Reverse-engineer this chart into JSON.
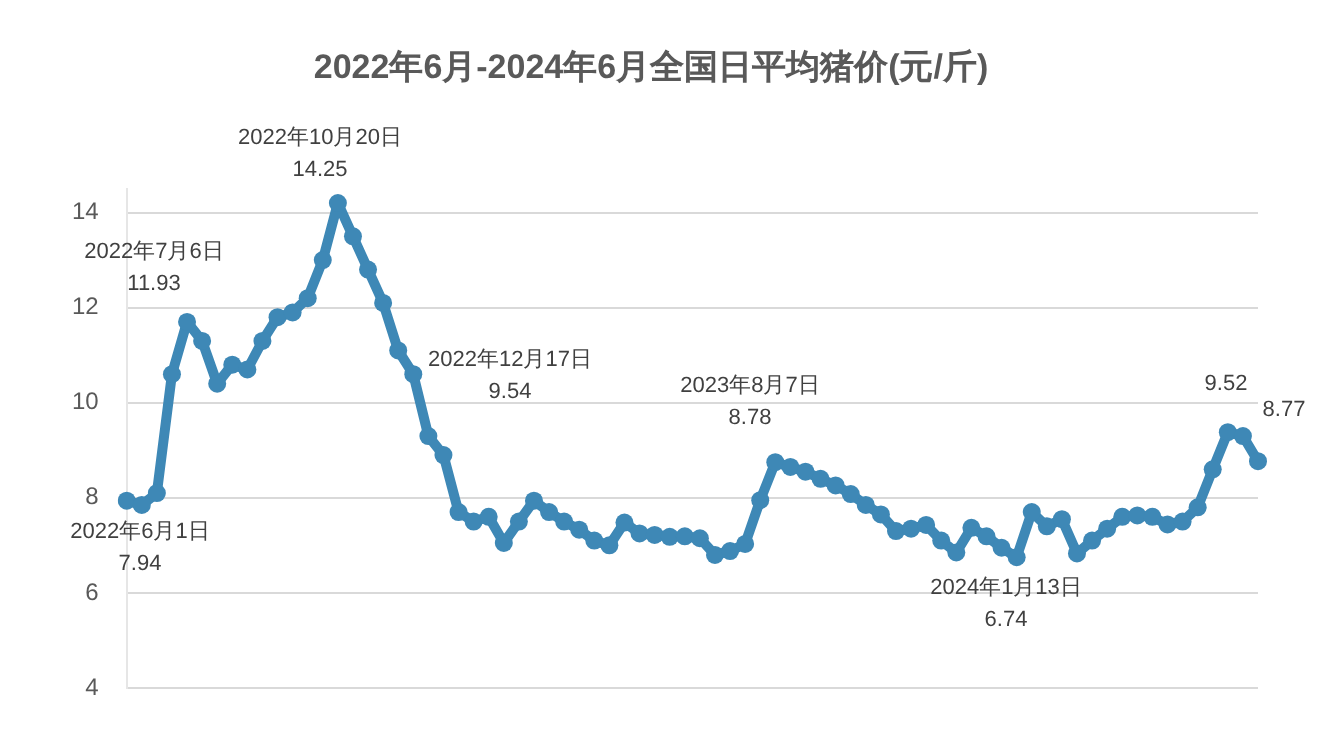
{
  "chart_data": {
    "type": "line",
    "title": "2022年6月-2024年6月全国日平均猪价(元/斤)",
    "categories": [
      null,
      null,
      null,
      null,
      null,
      null,
      null,
      null,
      null,
      null,
      null,
      null,
      null,
      null,
      null,
      null,
      null,
      null,
      null,
      null,
      null,
      null,
      null,
      null,
      null,
      null,
      null,
      null,
      null,
      null,
      null,
      null,
      null,
      null,
      null,
      null,
      null,
      null,
      null,
      null,
      null,
      null,
      null,
      null,
      null,
      null,
      null,
      null,
      null,
      null,
      null,
      null,
      null,
      null,
      null,
      null,
      null,
      null,
      null,
      null,
      null,
      null,
      null,
      null,
      null,
      null,
      null,
      null,
      null,
      null,
      null,
      null,
      null,
      null,
      null,
      null
    ],
    "series": [
      {
        "color": "#3e88b6",
        "values": [
          7.94,
          7.85,
          8.1,
          10.6,
          11.7,
          11.3,
          10.4,
          10.8,
          10.7,
          11.3,
          11.8,
          11.9,
          12.2,
          13.0,
          14.2,
          13.5,
          12.8,
          12.1,
          11.1,
          10.6,
          9.3,
          8.9,
          7.7,
          7.5,
          7.6,
          7.05,
          7.5,
          7.94,
          7.7,
          7.5,
          7.33,
          7.1,
          7.0,
          7.48,
          7.25,
          7.22,
          7.18,
          7.19,
          7.15,
          6.8,
          6.88,
          7.03,
          7.95,
          8.75,
          8.65,
          8.55,
          8.4,
          8.26,
          8.08,
          7.85,
          7.65,
          7.3,
          7.35,
          7.43,
          7.1,
          6.85,
          7.37,
          7.19,
          6.95,
          6.75,
          7.7,
          7.4,
          7.55,
          6.83,
          7.1,
          7.35,
          7.6,
          7.63,
          7.6,
          7.44,
          7.5,
          7.8,
          8.6,
          9.38,
          9.3,
          8.77
        ]
      }
    ],
    "ylim": [
      4,
      14.5
    ],
    "yticks": [
      4,
      6,
      8,
      10,
      12,
      14
    ],
    "tick_labels": "y",
    "grid": "y",
    "marker": "circle",
    "legend": false,
    "annotations": [
      "2022年6月1日\n7.94",
      "2022年7月6日\n11.93",
      "2022年10月20日\n14.25",
      "2022年12月17日\n9.54",
      "2023年8月7日\n8.78",
      "2024年1月13日\n6.74",
      "9.52",
      "8.77"
    ]
  }
}
